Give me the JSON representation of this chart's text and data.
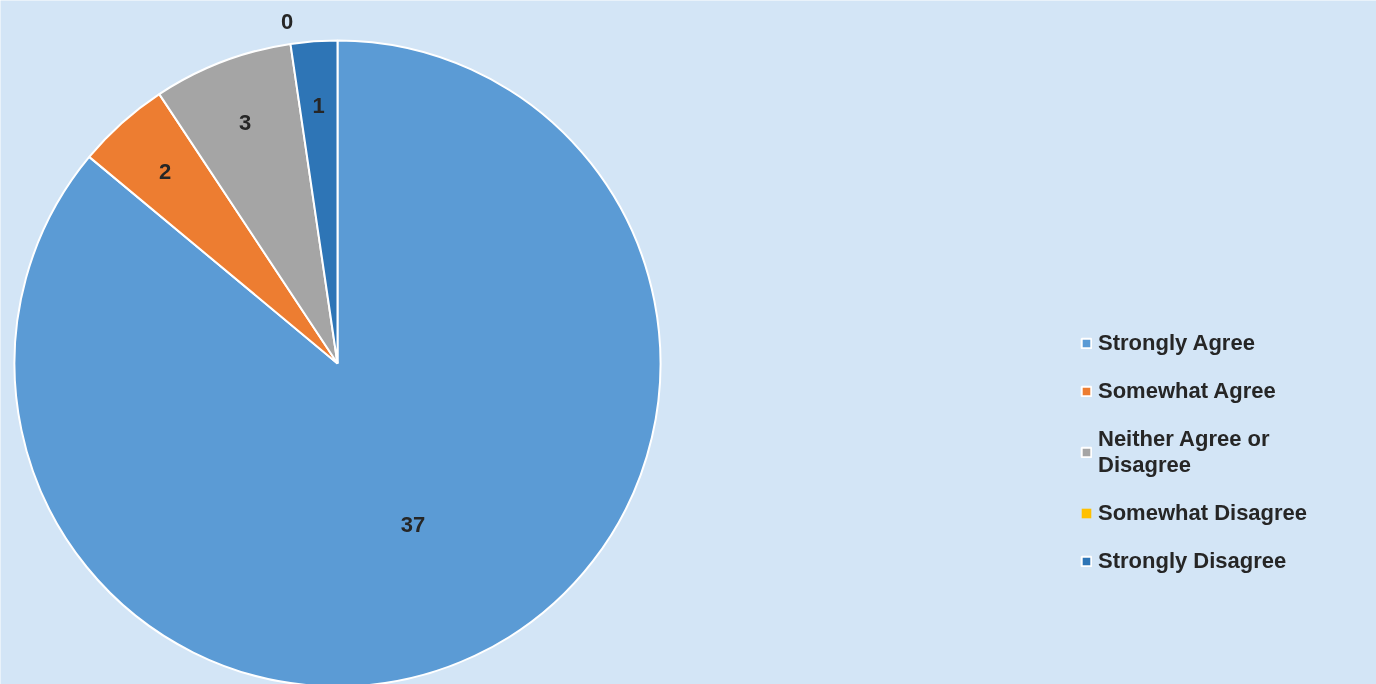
{
  "chart_data": {
    "type": "pie",
    "categories": [
      "Strongly Agree",
      "Somewhat Agree",
      "Neither Agree or Disagree",
      "Somewhat Disagree",
      "Strongly Disagree"
    ],
    "values": [
      37,
      2,
      3,
      0,
      1
    ],
    "colors": [
      "#5b9bd5",
      "#ed7d31",
      "#a5a5a5",
      "#ffc000",
      "#2e75b6"
    ],
    "value_labels": [
      "37",
      "2",
      "3",
      "0",
      "1"
    ],
    "legend": "right"
  }
}
